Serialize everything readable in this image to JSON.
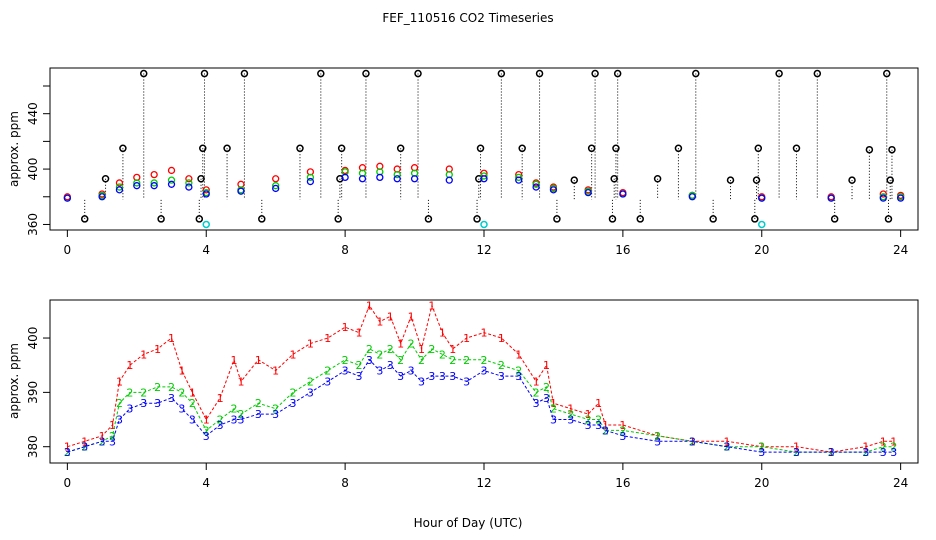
{
  "figure": {
    "title": "FEF_110516  CO2 Timeseries",
    "xlabel": "Hour of Day (UTC)"
  },
  "colors": {
    "series1": "#ff0000",
    "series2": "#00cc00",
    "series3": "#0000ff",
    "reference": "#000000",
    "low_flag": "#00cccc"
  },
  "chart_data": [
    {
      "type": "scatter",
      "panel": "top",
      "ylabel": "approx. ppm",
      "xlim": [
        -0.5,
        24.5
      ],
      "ylim": [
        356,
        473
      ],
      "xticks": [
        0,
        4,
        8,
        12,
        16,
        20,
        24
      ],
      "yticks": [
        360,
        400,
        440
      ],
      "ytick_minor": [
        380,
        420,
        460
      ],
      "reference_points": {
        "description": "black circles with dotted drop lines",
        "x": [
          0.5,
          1.1,
          1.6,
          2.2,
          2.7,
          3.8,
          3.85,
          3.9,
          3.95,
          4.6,
          5.1,
          5.6,
          6.7,
          7.3,
          7.8,
          7.85,
          7.9,
          8.6,
          9.6,
          10.1,
          10.4,
          11.8,
          11.85,
          11.9,
          12.5,
          13.1,
          13.6,
          14.1,
          14.6,
          15.1,
          15.2,
          15.7,
          15.75,
          15.8,
          15.85,
          16.5,
          17.0,
          17.6,
          18.1,
          18.6,
          19.1,
          19.8,
          19.85,
          19.9,
          20.5,
          21.0,
          21.6,
          22.1,
          22.6,
          23.1,
          23.6,
          23.65,
          23.7,
          23.75
        ],
        "y": [
          364,
          393,
          415,
          469,
          364,
          364,
          393,
          415,
          469,
          415,
          469,
          364,
          415,
          469,
          364,
          393,
          415,
          469,
          415,
          469,
          364,
          364,
          393,
          415,
          469,
          415,
          469,
          364,
          392,
          415,
          469,
          364,
          393,
          415,
          469,
          364,
          393,
          415,
          469,
          364,
          392,
          364,
          392,
          415,
          469,
          415,
          469,
          364,
          392,
          414,
          469,
          364,
          392,
          414
        ]
      },
      "low_flags": {
        "x": [
          4.0,
          12.0,
          20.0
        ],
        "y": [
          360,
          360,
          360
        ]
      },
      "series": [
        {
          "name": "1",
          "color": "#ff0000",
          "x": [
            0.0,
            1.0,
            1.5,
            2.0,
            2.5,
            3.0,
            3.5,
            4.0,
            5.0,
            6.0,
            7.0,
            8.0,
            8.5,
            9.0,
            9.5,
            10.0,
            11.0,
            12.0,
            13.0,
            13.5,
            14.0,
            15.0,
            16.0,
            18.0,
            20.0,
            22.0,
            23.5,
            24.0
          ],
          "y": [
            380,
            382,
            390,
            394,
            396,
            399,
            393,
            385,
            389,
            393,
            398,
            399,
            401,
            402,
            400,
            401,
            400,
            397,
            396,
            390,
            387,
            385,
            383,
            381,
            380,
            380,
            382,
            381
          ]
        },
        {
          "name": "2",
          "color": "#00cc00",
          "x": [
            0.0,
            1.0,
            1.5,
            2.0,
            2.5,
            3.0,
            3.5,
            4.0,
            5.0,
            6.0,
            7.0,
            8.0,
            8.5,
            9.0,
            9.5,
            10.0,
            11.0,
            12.0,
            13.0,
            13.5,
            14.0,
            15.0,
            16.0,
            18.0,
            20.0,
            22.0,
            23.5,
            24.0
          ],
          "y": [
            379,
            381,
            387,
            390,
            390,
            392,
            390,
            383,
            385,
            388,
            394,
            398,
            397,
            398,
            396,
            397,
            396,
            395,
            394,
            389,
            386,
            384,
            382,
            381,
            379,
            379,
            380,
            380
          ]
        },
        {
          "name": "3",
          "color": "#0000ff",
          "x": [
            0.0,
            1.0,
            1.5,
            2.0,
            2.5,
            3.0,
            3.5,
            4.0,
            5.0,
            6.0,
            7.0,
            8.0,
            8.5,
            9.0,
            9.5,
            10.0,
            11.0,
            12.0,
            13.0,
            13.5,
            14.0,
            15.0,
            16.0,
            18.0,
            20.0,
            22.0,
            23.5,
            24.0
          ],
          "y": [
            379,
            380,
            385,
            388,
            388,
            389,
            387,
            382,
            384,
            386,
            391,
            394,
            393,
            394,
            393,
            393,
            392,
            393,
            392,
            387,
            385,
            383,
            382,
            380,
            379,
            379,
            379,
            379
          ]
        }
      ]
    },
    {
      "type": "line",
      "panel": "bottom",
      "ylabel": "approx. ppm",
      "xlim": [
        -0.5,
        24.5
      ],
      "ylim": [
        377,
        407
      ],
      "xticks": [
        0,
        4,
        8,
        12,
        16,
        20,
        24
      ],
      "yticks": [
        380,
        390,
        400
      ],
      "marker_labels": [
        "1",
        "2",
        "3"
      ],
      "series": [
        {
          "name": "1",
          "color": "#ff0000",
          "x": [
            0.0,
            0.5,
            1.0,
            1.3,
            1.5,
            1.8,
            2.2,
            2.6,
            3.0,
            3.3,
            3.6,
            4.0,
            4.4,
            4.8,
            5.0,
            5.5,
            6.0,
            6.5,
            7.0,
            7.5,
            8.0,
            8.4,
            8.7,
            9.0,
            9.3,
            9.6,
            9.9,
            10.2,
            10.5,
            10.8,
            11.1,
            11.5,
            12.0,
            12.5,
            13.0,
            13.5,
            13.8,
            14.0,
            14.5,
            15.0,
            15.3,
            15.5,
            16.0,
            17.0,
            18.0,
            19.0,
            20.0,
            21.0,
            22.0,
            23.0,
            23.5,
            23.8
          ],
          "y": [
            380,
            381,
            382,
            384,
            392,
            395,
            397,
            398,
            400,
            394,
            390,
            385,
            389,
            396,
            392,
            396,
            394,
            397,
            399,
            400,
            402,
            401,
            406,
            403,
            404,
            399,
            404,
            398,
            406,
            401,
            398,
            400,
            401,
            400,
            397,
            392,
            395,
            388,
            387,
            386,
            388,
            384,
            384,
            382,
            381,
            381,
            380,
            380,
            379,
            380,
            381,
            381
          ]
        },
        {
          "name": "2",
          "color": "#00cc00",
          "x": [
            0.0,
            0.5,
            1.0,
            1.3,
            1.5,
            1.8,
            2.2,
            2.6,
            3.0,
            3.3,
            3.6,
            4.0,
            4.4,
            4.8,
            5.0,
            5.5,
            6.0,
            6.5,
            7.0,
            7.5,
            8.0,
            8.4,
            8.7,
            9.0,
            9.3,
            9.6,
            9.9,
            10.2,
            10.5,
            10.8,
            11.1,
            11.5,
            12.0,
            12.5,
            13.0,
            13.5,
            13.8,
            14.0,
            14.5,
            15.0,
            15.3,
            15.5,
            16.0,
            17.0,
            18.0,
            19.0,
            20.0,
            21.0,
            22.0,
            23.0,
            23.5,
            23.8
          ],
          "y": [
            379,
            380,
            381,
            382,
            388,
            390,
            390,
            391,
            391,
            390,
            388,
            383,
            385,
            387,
            386,
            388,
            387,
            390,
            392,
            394,
            396,
            395,
            398,
            397,
            398,
            396,
            399,
            396,
            398,
            397,
            396,
            396,
            396,
            395,
            394,
            390,
            391,
            387,
            386,
            385,
            385,
            383,
            383,
            382,
            381,
            380,
            380,
            379,
            379,
            379,
            380,
            380
          ]
        },
        {
          "name": "3",
          "color": "#0000ff",
          "x": [
            0.0,
            0.5,
            1.0,
            1.3,
            1.5,
            1.8,
            2.2,
            2.6,
            3.0,
            3.3,
            3.6,
            4.0,
            4.4,
            4.8,
            5.0,
            5.5,
            6.0,
            6.5,
            7.0,
            7.5,
            8.0,
            8.4,
            8.7,
            9.0,
            9.3,
            9.6,
            9.9,
            10.2,
            10.5,
            10.8,
            11.1,
            11.5,
            12.0,
            12.5,
            13.0,
            13.5,
            13.8,
            14.0,
            14.5,
            15.0,
            15.3,
            15.5,
            16.0,
            17.0,
            18.0,
            19.0,
            20.0,
            21.0,
            22.0,
            23.0,
            23.5,
            23.8
          ],
          "y": [
            379,
            380,
            381,
            381,
            385,
            387,
            388,
            388,
            389,
            387,
            385,
            382,
            384,
            385,
            385,
            386,
            386,
            388,
            390,
            392,
            394,
            393,
            396,
            394,
            395,
            393,
            394,
            392,
            393,
            393,
            393,
            392,
            394,
            393,
            393,
            388,
            389,
            385,
            385,
            384,
            384,
            383,
            382,
            381,
            381,
            380,
            379,
            379,
            379,
            379,
            379,
            379
          ]
        }
      ]
    }
  ]
}
